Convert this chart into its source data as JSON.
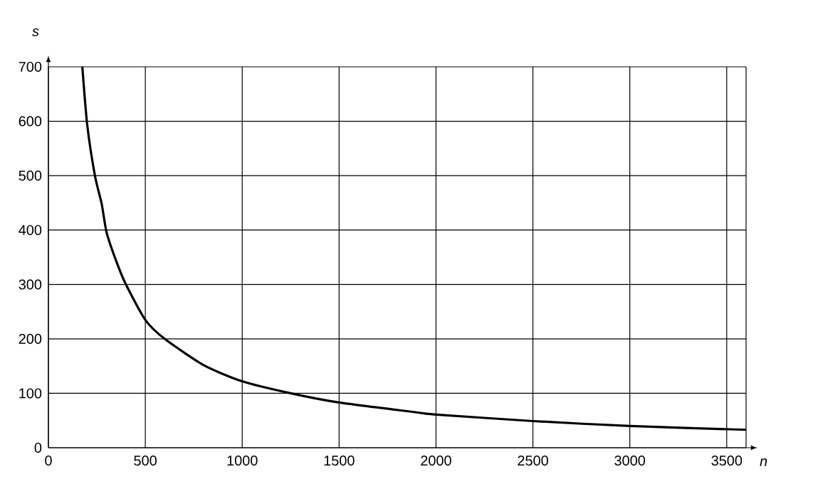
{
  "chart_data": {
    "type": "line",
    "xlabel": "n",
    "ylabel": "s",
    "xlim": [
      0,
      3600
    ],
    "ylim": [
      0,
      700
    ],
    "xticks": [
      0,
      500,
      1000,
      1500,
      2000,
      2500,
      3000,
      3500
    ],
    "yticks": [
      0,
      100,
      200,
      300,
      400,
      500,
      600,
      700
    ],
    "grid": true,
    "marker": "none",
    "line_style": "solid",
    "series": [
      {
        "color": "#000000",
        "x": [
          175,
          200,
          240,
          275,
          300,
          350,
          400,
          500,
          600,
          800,
          1000,
          1250,
          1500,
          1900,
          2000,
          2500,
          3000,
          3600
        ],
        "values": [
          700,
          594,
          500,
          448,
          396,
          343,
          300,
          235,
          200,
          152,
          122,
          100,
          83,
          65,
          61,
          49,
          40,
          33
        ]
      }
    ]
  }
}
